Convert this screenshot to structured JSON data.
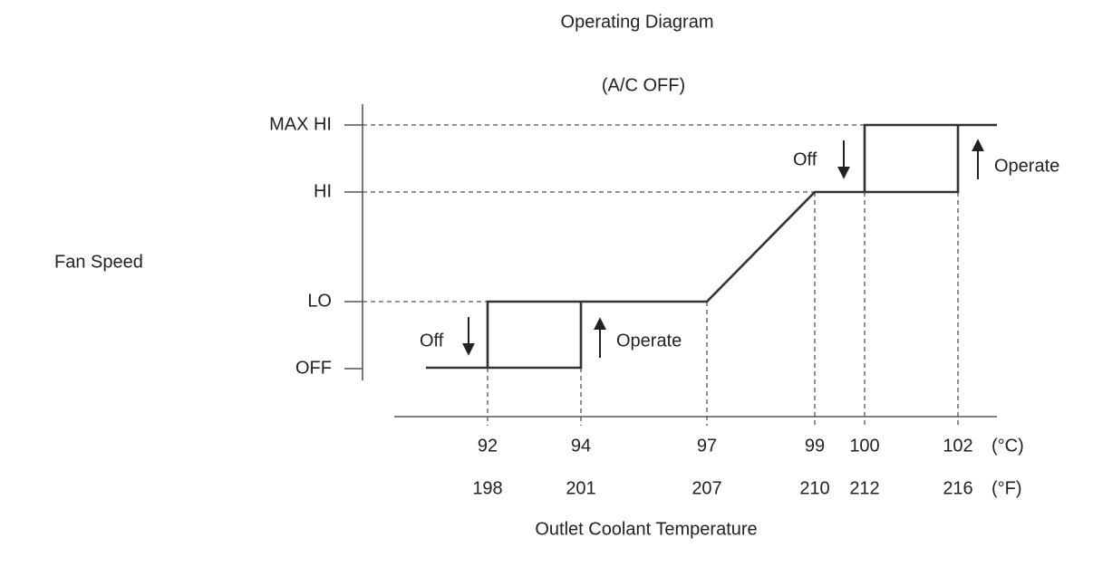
{
  "header": {
    "title": "Operating Diagram",
    "subtitle": "(A/C OFF)"
  },
  "y_axis": {
    "label": "Fan Speed",
    "levels": [
      "MAX HI",
      "HI",
      "LO",
      "OFF"
    ]
  },
  "x_axis": {
    "label": "Outlet Coolant Temperature",
    "celsius": {
      "unit": "(°C)",
      "ticks": [
        "92",
        "94",
        "97",
        "99",
        "100",
        "102"
      ]
    },
    "fahrenheit": {
      "unit": "(°F)",
      "ticks": [
        "198",
        "201",
        "207",
        "210",
        "212",
        "216"
      ]
    }
  },
  "annotations": {
    "low_off": "Off",
    "low_operate": "Operate",
    "high_off": "Off",
    "high_operate": "Operate"
  }
}
